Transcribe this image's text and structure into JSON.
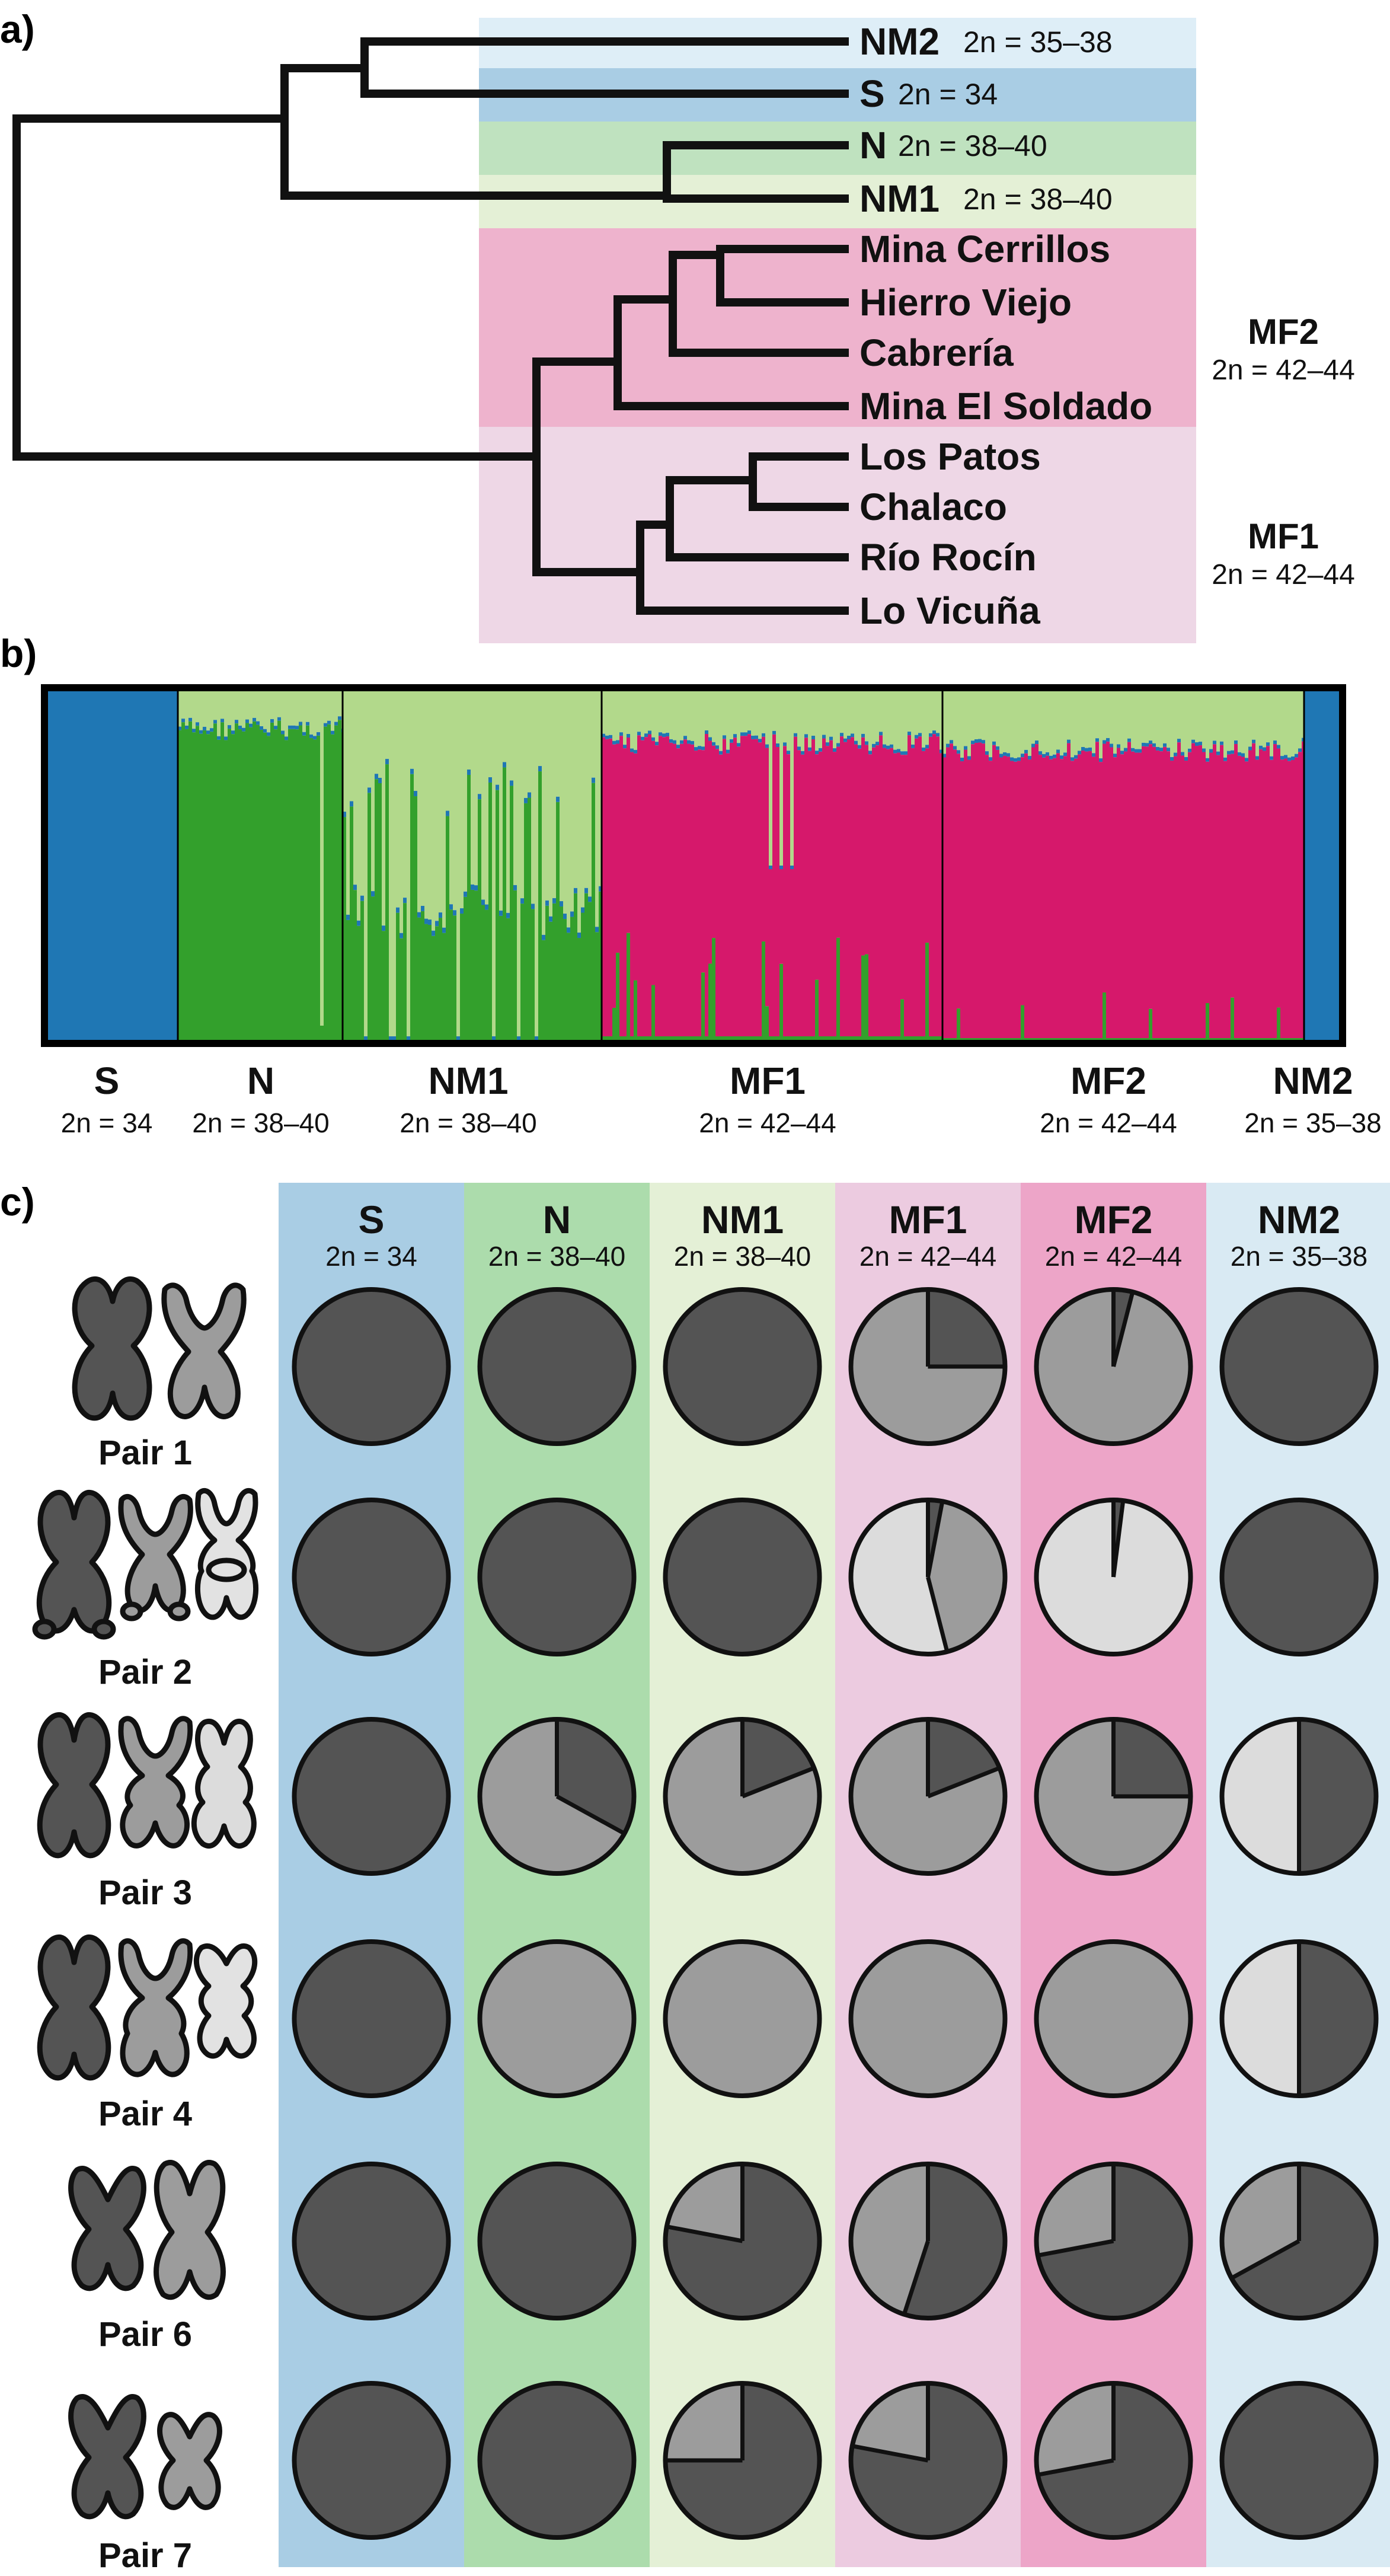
{
  "panels": {
    "a": {
      "letter": "a)"
    },
    "b": {
      "letter": "b)"
    },
    "c": {
      "letter": "c)"
    }
  },
  "tree": {
    "taxa": [
      {
        "name": "NM2",
        "diploid": "2n = 35–38",
        "band_color": "#deeef7"
      },
      {
        "name": "S",
        "diploid": "2n = 34",
        "band_color": "#a9cde4"
      },
      {
        "name": "N",
        "diploid": "2n = 38–40",
        "band_color": "#bfe2bf"
      },
      {
        "name": "NM1",
        "diploid": "2n = 38–40",
        "band_color": "#e4f0d6"
      },
      {
        "name": "Mina Cerrillos",
        "diploid": "",
        "band_color": "#eeb3cd"
      },
      {
        "name": "Hierro Viejo",
        "diploid": "",
        "band_color": "#eeb3cd"
      },
      {
        "name": "Cabrería",
        "diploid": "",
        "band_color": "#eeb3cd"
      },
      {
        "name": "Mina El Soldado",
        "diploid": "",
        "band_color": "#eeb3cd"
      },
      {
        "name": "Los Patos",
        "diploid": "",
        "band_color": "#eed7e6"
      },
      {
        "name": "Chalaco",
        "diploid": "",
        "band_color": "#eed7e6"
      },
      {
        "name": "Río Rocín",
        "diploid": "",
        "band_color": "#eed7e6"
      },
      {
        "name": "Lo Vicuña",
        "diploid": "",
        "band_color": "#eed7e6"
      }
    ],
    "side_labels": [
      {
        "name": "MF2",
        "diploid": "2n = 42–44"
      },
      {
        "name": "MF1",
        "diploid": "2n = 42–44"
      }
    ]
  },
  "structure": {
    "clusters": [
      {
        "name": "S",
        "diploid": "2n = 34"
      },
      {
        "name": "N",
        "diploid": "2n = 38–40"
      },
      {
        "name": "NM1",
        "diploid": "2n = 38–40"
      },
      {
        "name": "MF1",
        "diploid": "2n = 42–44"
      },
      {
        "name": "MF2",
        "diploid": "2n = 42–44"
      },
      {
        "name": "NM2",
        "diploid": "2n = 35–38"
      }
    ],
    "colors": {
      "blue": "#1f77b4",
      "green": "#33a02c",
      "light_green": "#b2d98b",
      "magenta": "#d6186b"
    }
  },
  "chart_data": {
    "type": "pie-matrix",
    "title": "",
    "columns": [
      {
        "name": "S",
        "diploid": "2n = 34",
        "color": "#a9cde4"
      },
      {
        "name": "N",
        "diploid": "2n = 38–40",
        "color": "#acdcac"
      },
      {
        "name": "NM1",
        "diploid": "2n = 38–40",
        "color": "#e4f0d6"
      },
      {
        "name": "MF1",
        "diploid": "2n = 42–44",
        "color": "#eccbe0"
      },
      {
        "name": "MF2",
        "diploid": "2n = 42–44",
        "color": "#eda5c8"
      },
      {
        "name": "NM2",
        "diploid": "2n = 35–38",
        "color": "#d9eaf3"
      }
    ],
    "rows": [
      "Pair 1",
      "Pair 2",
      "Pair 3",
      "Pair 4",
      "Pair 6",
      "Pair 7"
    ],
    "morph_colors": [
      "#545454",
      "#9c9c9c",
      "#dcdcdc"
    ],
    "values": [
      [
        [
          1,
          0,
          0
        ],
        [
          1,
          0,
          0
        ],
        [
          1,
          0,
          0
        ],
        [
          0.25,
          0.75,
          0
        ],
        [
          0.04,
          0.96,
          0
        ],
        [
          1,
          0,
          0
        ]
      ],
      [
        [
          1,
          0,
          0
        ],
        [
          1,
          0,
          0
        ],
        [
          1,
          0,
          0
        ],
        [
          0.03,
          0.43,
          0.54
        ],
        [
          0.02,
          0,
          0.98
        ],
        [
          1,
          0,
          0
        ]
      ],
      [
        [
          1,
          0,
          0
        ],
        [
          0.33,
          0.67,
          0
        ],
        [
          0.19,
          0.81,
          0
        ],
        [
          0.19,
          0.81,
          0
        ],
        [
          0.25,
          0.75,
          0
        ],
        [
          0.5,
          0,
          0.5
        ]
      ],
      [
        [
          1,
          0,
          0
        ],
        [
          0,
          1,
          0
        ],
        [
          0,
          1,
          0
        ],
        [
          0,
          1,
          0
        ],
        [
          0,
          1,
          0
        ],
        [
          0.5,
          0,
          0.5
        ]
      ],
      [
        [
          1,
          0,
          0
        ],
        [
          1,
          0,
          0
        ],
        [
          0.78,
          0.22,
          0
        ],
        [
          0.55,
          0.45,
          0
        ],
        [
          0.72,
          0.28,
          0
        ],
        [
          0.67,
          0.33,
          0
        ]
      ],
      [
        [
          1,
          0,
          0
        ],
        [
          1,
          0,
          0
        ],
        [
          0.75,
          0.25,
          0
        ],
        [
          0.78,
          0.22,
          0
        ],
        [
          0.72,
          0.28,
          0
        ],
        [
          1,
          0,
          0
        ]
      ]
    ]
  }
}
